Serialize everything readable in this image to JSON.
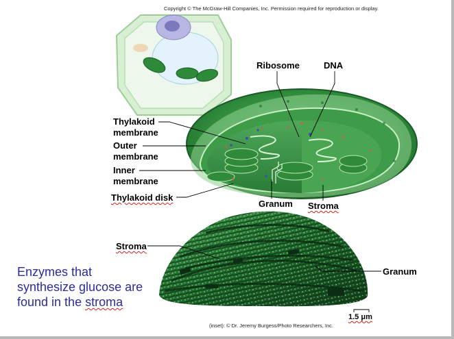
{
  "copyright": "Copyright © The McGraw-Hill Companies, Inc. Permission required for reproduction or display.",
  "labels": {
    "ribosome": "Ribosome",
    "dna": "DNA",
    "thylakoid_membrane_1": "Thylakoid",
    "thylakoid_membrane_2": "membrane",
    "outer_membrane_1": "Outer",
    "outer_membrane_2": "membrane",
    "inner_membrane_1": "Inner",
    "inner_membrane_2": "membrane",
    "thylakoid_disk": "Thylakoid disk",
    "granum_top": "Granum",
    "stroma_top": "Stroma",
    "stroma_micro": "Stroma",
    "granum_micro": "Granum",
    "scale_bar": "1.5 μm"
  },
  "note": {
    "line1": "Enzymes that",
    "line2": "synthesize glucose are",
    "line3_prefix": "found in the ",
    "line3_word": "stroma"
  },
  "credit": "(inset): © Dr. Jeremy Burgess/Photo Researchers, Inc.",
  "colors": {
    "note_text": "#2b2b9e",
    "chloroplast_green": "#2e8b3a",
    "spellcheck_red": "#d12020"
  }
}
